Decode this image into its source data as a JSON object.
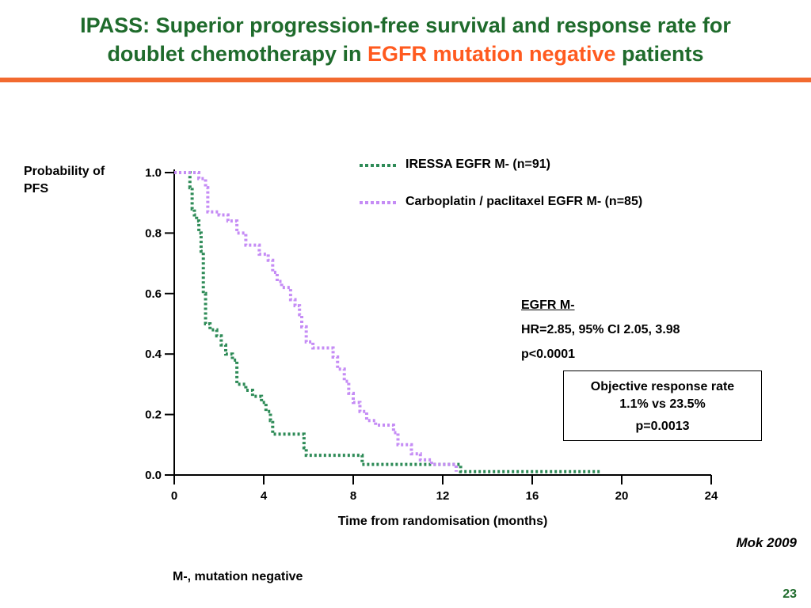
{
  "slide": {
    "title_part1": "IPASS: Superior progression-free survival and response rate for",
    "title_part2_pre": "doublet chemotherapy in ",
    "title_highlight": "EGFR mutation negative",
    "title_part2_post": " patients",
    "accent_color": "#f26a2f",
    "title_color": "#1f6b2c",
    "citation": "Mok 2009",
    "footnote": "M-, mutation negative",
    "page_number": "23"
  },
  "stats": {
    "heading": "EGFR M-",
    "hr": "HR=2.85, 95% CI 2.05, 3.98",
    "p": "p<0.0001"
  },
  "orr": {
    "label": "Objective response rate",
    "values": "1.1% vs 23.5%",
    "p": "p=0.0013"
  },
  "chart_data": {
    "type": "line",
    "title": "",
    "xlabel": "Time from randomisation (months)",
    "ylabel": "Probability of PFS",
    "xlim": [
      0,
      24
    ],
    "ylim": [
      0,
      1.0
    ],
    "xticks": [
      0,
      4,
      8,
      12,
      16,
      20,
      24
    ],
    "yticks": [
      0.0,
      0.2,
      0.4,
      0.6,
      0.8,
      1.0
    ],
    "ytick_labels": [
      "0.0",
      "0.2",
      "0.4",
      "0.6",
      "0.8",
      "1.0"
    ],
    "grid": false,
    "legend_position": "top-right",
    "series": [
      {
        "name": "IRESSA EGFR M- (n=91)",
        "color": "#2e8b57",
        "style": "dotted",
        "points": [
          [
            0,
            1.0
          ],
          [
            0.6,
            1.0
          ],
          [
            0.7,
            0.95
          ],
          [
            0.8,
            0.88
          ],
          [
            0.9,
            0.86
          ],
          [
            1.0,
            0.84
          ],
          [
            1.1,
            0.8
          ],
          [
            1.2,
            0.74
          ],
          [
            1.3,
            0.6
          ],
          [
            1.4,
            0.5
          ],
          [
            1.6,
            0.48
          ],
          [
            1.9,
            0.46
          ],
          [
            2.1,
            0.43
          ],
          [
            2.3,
            0.4
          ],
          [
            2.6,
            0.38
          ],
          [
            2.8,
            0.3
          ],
          [
            3.2,
            0.28
          ],
          [
            3.5,
            0.26
          ],
          [
            3.9,
            0.24
          ],
          [
            4.1,
            0.21
          ],
          [
            4.3,
            0.18
          ],
          [
            4.4,
            0.135
          ],
          [
            5.5,
            0.135
          ],
          [
            5.8,
            0.09
          ],
          [
            5.9,
            0.065
          ],
          [
            7.9,
            0.065
          ],
          [
            8.4,
            0.035
          ],
          [
            12.0,
            0.035
          ],
          [
            12.8,
            0.011
          ],
          [
            19.1,
            0.011
          ]
        ]
      },
      {
        "name": "Carboplatin / paclitaxel EGFR M- (n=85)",
        "color": "#c58cf5",
        "style": "dotted",
        "points": [
          [
            0,
            1.0
          ],
          [
            0.7,
            1.0
          ],
          [
            1.1,
            0.98
          ],
          [
            1.4,
            0.95
          ],
          [
            1.5,
            0.87
          ],
          [
            2.0,
            0.86
          ],
          [
            2.4,
            0.84
          ],
          [
            2.8,
            0.8
          ],
          [
            3.2,
            0.76
          ],
          [
            3.8,
            0.73
          ],
          [
            4.2,
            0.71
          ],
          [
            4.4,
            0.67
          ],
          [
            4.6,
            0.64
          ],
          [
            4.8,
            0.62
          ],
          [
            5.2,
            0.58
          ],
          [
            5.4,
            0.56
          ],
          [
            5.6,
            0.53
          ],
          [
            5.7,
            0.49
          ],
          [
            5.9,
            0.44
          ],
          [
            6.2,
            0.42
          ],
          [
            6.9,
            0.42
          ],
          [
            7.1,
            0.39
          ],
          [
            7.3,
            0.35
          ],
          [
            7.6,
            0.31
          ],
          [
            7.8,
            0.27
          ],
          [
            8.0,
            0.24
          ],
          [
            8.3,
            0.21
          ],
          [
            8.6,
            0.18
          ],
          [
            9.0,
            0.165
          ],
          [
            9.6,
            0.165
          ],
          [
            9.8,
            0.14
          ],
          [
            10.0,
            0.1
          ],
          [
            10.6,
            0.07
          ],
          [
            11.0,
            0.05
          ],
          [
            11.5,
            0.035
          ],
          [
            12.4,
            0.035
          ],
          [
            12.6,
            0.011
          ]
        ]
      }
    ]
  }
}
